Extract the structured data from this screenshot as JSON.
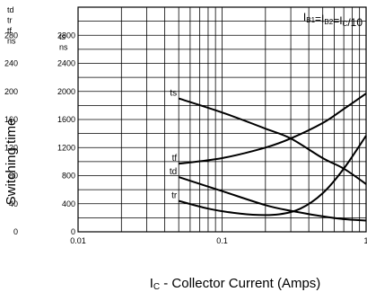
{
  "chart_data": {
    "type": "line",
    "title": "",
    "xlabel": {
      "main": "I",
      "sub": "C",
      "rest": " - Collector Current (Amps)"
    },
    "ylabel": "Switching time",
    "x_scale": "log",
    "xlim": [
      0.01,
      1
    ],
    "x_ticks": [
      {
        "value": 0.01,
        "label": "0.01"
      },
      {
        "value": 0.1,
        "label": "0.1"
      },
      {
        "value": 1,
        "label": "1"
      }
    ],
    "y_axes": [
      {
        "units": [
          "td",
          "tr",
          "tf",
          "ns"
        ],
        "ylim": [
          0,
          320
        ],
        "ticks": [
          {
            "value": 0,
            "label": "0"
          },
          {
            "value": 40,
            "label": "40"
          },
          {
            "value": 80,
            "label": "80"
          },
          {
            "value": 120,
            "label": "120"
          },
          {
            "value": 160,
            "label": "160"
          },
          {
            "value": 200,
            "label": "200"
          },
          {
            "value": 240,
            "label": "240"
          },
          {
            "value": 280,
            "label": "280"
          }
        ]
      },
      {
        "units": [
          "ts",
          "ns"
        ],
        "ylim": [
          0,
          3200
        ],
        "ticks": [
          {
            "value": 0,
            "label": "0"
          },
          {
            "value": 400,
            "label": "400"
          },
          {
            "value": 800,
            "label": "800"
          },
          {
            "value": 1200,
            "label": "1200"
          },
          {
            "value": 1600,
            "label": "1600"
          },
          {
            "value": 2000,
            "label": "2000"
          },
          {
            "value": 2400,
            "label": "2400"
          },
          {
            "value": 2800,
            "label": "2800"
          }
        ]
      }
    ],
    "grid": true,
    "annotation": {
      "parts": [
        {
          "text": "I",
          "sub": "B1"
        },
        {
          "text": "=I",
          "sub": "B2"
        },
        {
          "text": "=I",
          "sub": "C"
        },
        {
          "text": "/10",
          "sub": ""
        }
      ]
    },
    "series": [
      {
        "name": "ts",
        "axis": "ts ns",
        "x": [
          0.05,
          0.1,
          0.2,
          0.3,
          0.5,
          0.7,
          1.0
        ],
        "y": [
          1900,
          1700,
          1470,
          1330,
          1050,
          900,
          680
        ]
      },
      {
        "name": "tf",
        "axis": "td tr tf ns",
        "x": [
          0.05,
          0.1,
          0.2,
          0.3,
          0.5,
          0.7,
          1.0
        ],
        "y": [
          97,
          105,
          120,
          133,
          155,
          175,
          197
        ]
      },
      {
        "name": "td",
        "axis": "td tr tf ns",
        "x": [
          0.05,
          0.1,
          0.2,
          0.3,
          0.5,
          0.7,
          1.0
        ],
        "y": [
          78,
          58,
          38,
          30,
          22,
          18,
          16
        ]
      },
      {
        "name": "tr",
        "axis": "td tr tf ns",
        "x": [
          0.05,
          0.08,
          0.12,
          0.18,
          0.25,
          0.35,
          0.5,
          0.7,
          1.0
        ],
        "y": [
          44,
          33,
          27,
          24,
          25,
          33,
          55,
          90,
          137
        ]
      }
    ]
  }
}
